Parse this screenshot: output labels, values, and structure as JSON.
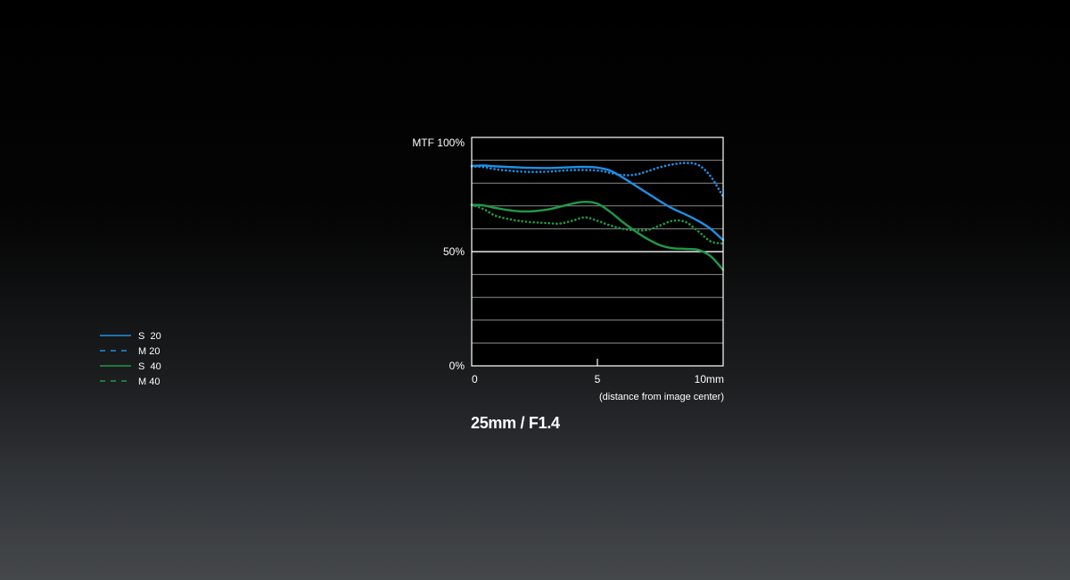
{
  "chart_data": {
    "type": "line",
    "title": "25mm / F1.4",
    "ylabel": "MTF 100%",
    "xlabel_note": "(distance from image center)",
    "xlim": [
      0,
      10
    ],
    "ylim": [
      0,
      100
    ],
    "x_ticks": [
      {
        "value": 0,
        "label": "0"
      },
      {
        "value": 5,
        "label": "5"
      },
      {
        "value": 10,
        "label": "10mm"
      }
    ],
    "y_ticks": [
      {
        "value": 50,
        "label": "50%"
      },
      {
        "value": 0,
        "label": "0%"
      }
    ],
    "gridlines": [
      10,
      20,
      30,
      40,
      50,
      60,
      70,
      80,
      90
    ],
    "emphasized_gridline": 50,
    "legend_position": "left",
    "series": [
      {
        "name": "S  20",
        "color": "#1e90e6",
        "style": "solid",
        "x": [
          0,
          0.5,
          1,
          2,
          3,
          4,
          4.5,
          5,
          5.5,
          6,
          6.5,
          7,
          7.5,
          8,
          8.5,
          9,
          9.5,
          10
        ],
        "y": [
          87.5,
          87.7,
          87.3,
          86.8,
          86.6,
          87.0,
          87.1,
          86.8,
          85.5,
          82.5,
          79.0,
          75.5,
          72.0,
          68.8,
          66.3,
          63.5,
          60.0,
          55.0
        ]
      },
      {
        "name": "M 20",
        "color": "#1e90e6",
        "style": "dotted",
        "x": [
          0,
          0.5,
          1,
          2,
          3,
          4,
          5,
          5.5,
          6,
          6.5,
          7,
          7.5,
          8,
          8.5,
          9,
          9.5,
          10
        ],
        "y": [
          87.3,
          87.0,
          86.0,
          85.0,
          85.0,
          85.7,
          85.5,
          84.5,
          83.5,
          83.7,
          85.2,
          87.0,
          88.2,
          88.8,
          88.0,
          83.0,
          74.0
        ]
      },
      {
        "name": "S  40",
        "color": "#1f9a48",
        "style": "solid",
        "x": [
          0,
          0.5,
          1,
          2,
          3,
          4,
          4.5,
          5,
          5.5,
          6,
          6.5,
          7,
          7.5,
          8,
          8.5,
          9,
          9.5,
          10
        ],
        "y": [
          70.5,
          70.2,
          69.0,
          67.6,
          68.4,
          71.0,
          71.8,
          71.0,
          67.5,
          63.0,
          59.0,
          55.5,
          52.8,
          51.5,
          51.2,
          50.8,
          48.0,
          42.0
        ]
      },
      {
        "name": "M 40",
        "color": "#1f9a48",
        "style": "dotted",
        "x": [
          0,
          0.5,
          1,
          2,
          3,
          3.5,
          4,
          4.5,
          5,
          5.5,
          6,
          6.5,
          7,
          7.5,
          8,
          8.5,
          9,
          9.5,
          10
        ],
        "y": [
          70.5,
          68.5,
          65.5,
          63.3,
          62.5,
          62.3,
          63.5,
          65.0,
          63.5,
          61.5,
          60.0,
          59.3,
          59.5,
          61.5,
          63.5,
          63.0,
          59.0,
          54.5,
          53.5
        ]
      }
    ]
  }
}
